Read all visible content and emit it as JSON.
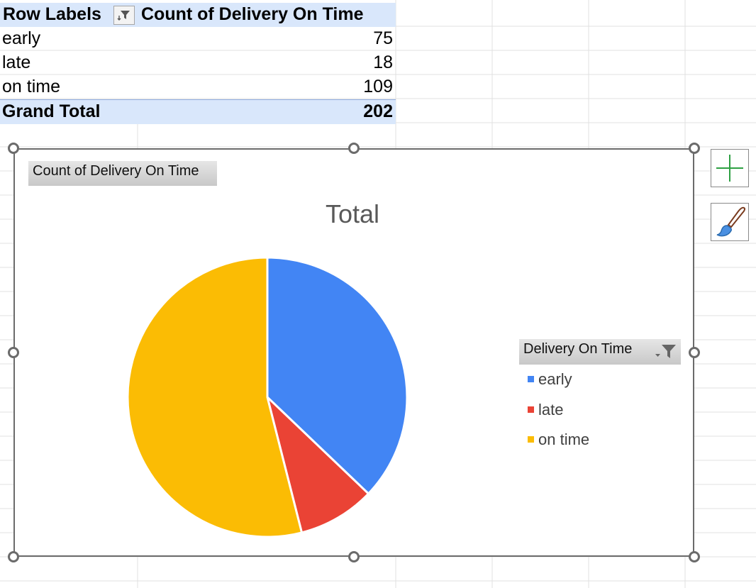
{
  "pivot": {
    "header": {
      "row_labels": "Row Labels",
      "value_header": "Count of Delivery On Time"
    },
    "rows": [
      {
        "label": "early",
        "value": "75"
      },
      {
        "label": "late",
        "value": "18"
      },
      {
        "label": "on time",
        "value": "109"
      }
    ],
    "total": {
      "label": "Grand Total",
      "value": "202"
    }
  },
  "chart": {
    "value_field_button": "Count of Delivery On Time",
    "title": "Total",
    "legend_field_button": "Delivery On Time",
    "legend": [
      "early",
      "late",
      "on time"
    ]
  },
  "chart_data": {
    "type": "pie",
    "title": "Total",
    "categories": [
      "early",
      "late",
      "on time"
    ],
    "values": [
      75,
      18,
      109
    ],
    "colors": [
      "#4285f4",
      "#ea4335",
      "#fbbc04"
    ],
    "legend_placement": "right"
  },
  "icons": {
    "filter": "filter-icon",
    "add_chart_element": "plus-icon",
    "chart_styles": "paintbrush-icon"
  }
}
